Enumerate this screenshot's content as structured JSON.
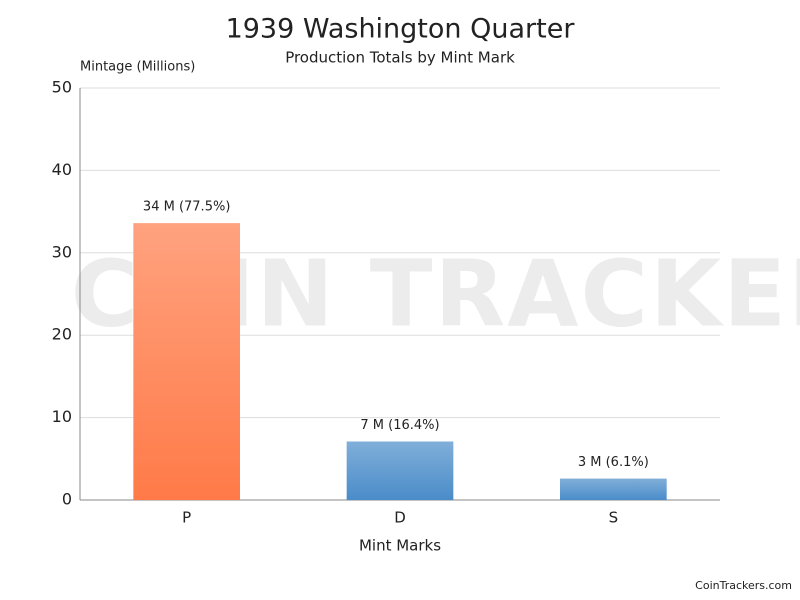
{
  "chart_data": {
    "type": "bar",
    "title": "1939 Washington Quarter",
    "subtitle": "Production Totals by Mint Mark",
    "y_label": "Mintage (Millions)",
    "x_label": "Mint Marks",
    "categories": [
      "P",
      "D",
      "S"
    ],
    "values": [
      33.6,
      7.1,
      2.6
    ],
    "value_labels": [
      "34 M (77.5%)",
      "7 M (16.4%)",
      "3 M (6.1%)"
    ],
    "colors": [
      "#ff7a48",
      "#4a8cc9",
      "#4a8cc9"
    ],
    "ylim": [
      0,
      50
    ],
    "yticks": [
      0,
      10,
      20,
      30,
      40,
      50
    ],
    "grid": true,
    "watermark": "COIN TRACKERS",
    "footer": "CoinTrackers.com"
  }
}
